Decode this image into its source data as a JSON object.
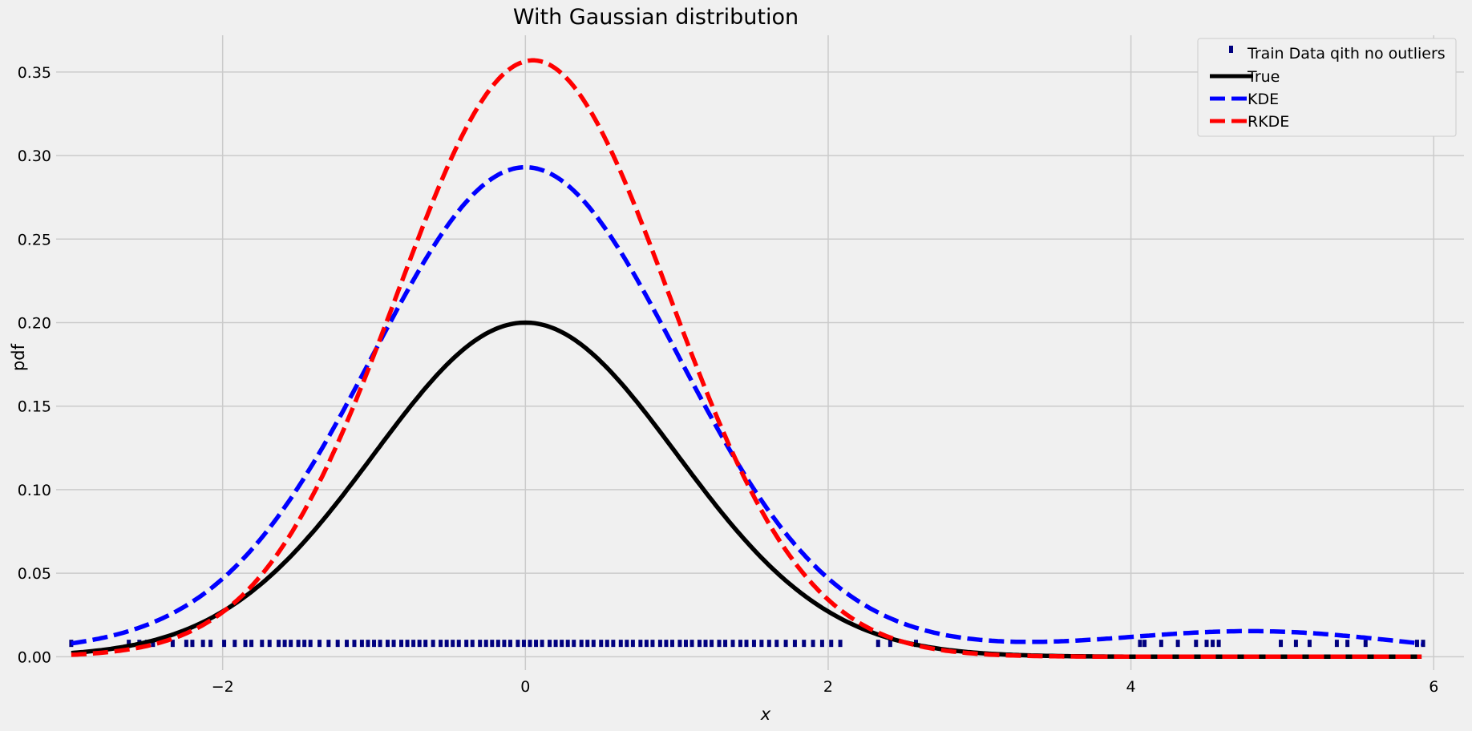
{
  "chart_data": {
    "type": "line",
    "title": "With Gaussian distribution",
    "xlabel": "x",
    "ylabel": "pdf",
    "xlim": [
      -3.1,
      6.2
    ],
    "ylim": [
      -0.008,
      0.372
    ],
    "xticks": [
      -2,
      0,
      2,
      4,
      6
    ],
    "xtick_labels": [
      "−2",
      "0",
      "2",
      "4",
      "6"
    ],
    "yticks": [
      0.0,
      0.05,
      0.1,
      0.15,
      0.2,
      0.25,
      0.3,
      0.35
    ],
    "ytick_labels": [
      "0.00",
      "0.05",
      "0.10",
      "0.15",
      "0.20",
      "0.25",
      "0.30",
      "0.35"
    ],
    "grid": true,
    "legend_position": "top-right",
    "colors": {
      "background": "#f0f0f0",
      "grid": "#cbcbcb",
      "train": "#00007f",
      "true": "#000000",
      "kde": "#0000ff",
      "rkde": "#ff0000"
    },
    "series": [
      {
        "name": "Train Data qith no outliers",
        "kind": "markers",
        "marker": "square",
        "y": 0.008,
        "x": [
          -3.0,
          -2.62,
          -2.55,
          -2.5,
          -2.46,
          -2.33,
          -2.24,
          -2.2,
          -2.13,
          -2.08,
          -1.99,
          -1.92,
          -1.85,
          -1.81,
          -1.74,
          -1.69,
          -1.63,
          -1.59,
          -1.55,
          -1.5,
          -1.46,
          -1.42,
          -1.36,
          -1.3,
          -1.24,
          -1.18,
          -1.13,
          -1.08,
          -1.04,
          -1.0,
          -0.96,
          -0.91,
          -0.87,
          -0.82,
          -0.78,
          -0.74,
          -0.7,
          -0.66,
          -0.61,
          -0.56,
          -0.52,
          -0.48,
          -0.44,
          -0.39,
          -0.35,
          -0.3,
          -0.26,
          -0.22,
          -0.18,
          -0.14,
          -0.1,
          -0.05,
          -0.01,
          0.03,
          0.07,
          0.11,
          0.16,
          0.2,
          0.24,
          0.28,
          0.32,
          0.37,
          0.41,
          0.45,
          0.5,
          0.54,
          0.58,
          0.63,
          0.67,
          0.71,
          0.76,
          0.8,
          0.84,
          0.89,
          0.93,
          0.97,
          1.02,
          1.06,
          1.1,
          1.15,
          1.19,
          1.23,
          1.28,
          1.32,
          1.37,
          1.42,
          1.46,
          1.51,
          1.56,
          1.61,
          1.66,
          1.72,
          1.78,
          1.84,
          1.9,
          1.96,
          2.02,
          2.08,
          2.33,
          2.41,
          2.58,
          4.06,
          4.09,
          4.2,
          4.31,
          4.43,
          4.5,
          4.54,
          4.58,
          4.99,
          5.09,
          5.18,
          5.36,
          5.43,
          5.55,
          5.89,
          5.93
        ]
      },
      {
        "name": "True",
        "kind": "line",
        "style": "solid",
        "function": "true"
      },
      {
        "name": "KDE",
        "kind": "line",
        "style": "dashed",
        "function": "kde"
      },
      {
        "name": "RKDE",
        "kind": "line",
        "style": "dashed",
        "function": "rkde"
      }
    ]
  }
}
